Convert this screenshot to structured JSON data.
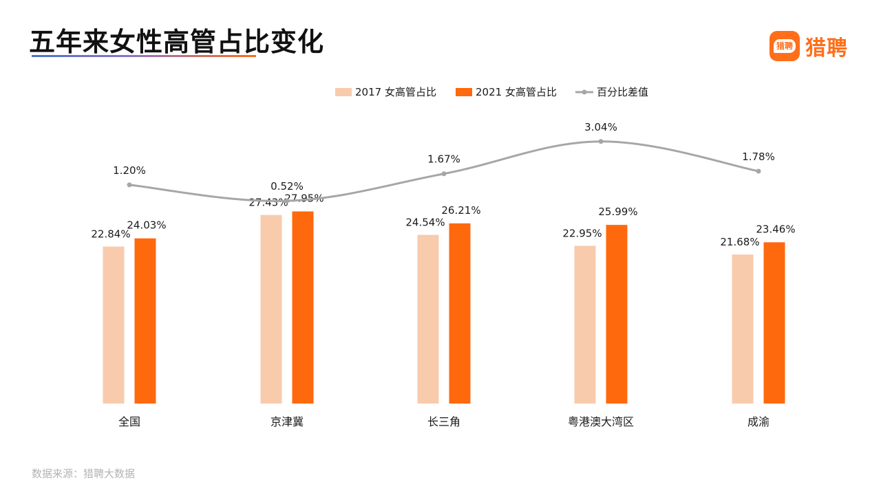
{
  "header": {
    "title": "五年来女性高管占比变化",
    "brand_bubble": "猎聘",
    "brand_name": "猎聘"
  },
  "footer": {
    "source": "数据来源：猎聘大数据"
  },
  "colors": {
    "bar2017": "#f8cbad",
    "bar2021": "#ff690e",
    "diff_line": "#a6a6a6",
    "accent": "#ff6e1a"
  },
  "chart_data": {
    "type": "bar",
    "categories": [
      "全国",
      "京津冀",
      "长三角",
      "粤港澳大湾区",
      "成渝"
    ],
    "series": [
      {
        "name": "2017 女高管占比",
        "type": "bar",
        "values": [
          22.84,
          27.43,
          24.54,
          22.95,
          21.68
        ],
        "labels": [
          "22.84%",
          "27.43%",
          "24.54%",
          "22.95%",
          "21.68%"
        ]
      },
      {
        "name": "2021 女高管占比",
        "type": "bar",
        "values": [
          24.03,
          27.95,
          26.21,
          25.99,
          23.46
        ],
        "labels": [
          "24.03%",
          "27.95%",
          "26.21%",
          "25.99%",
          "23.46%"
        ]
      },
      {
        "name": "百分比差值",
        "type": "line",
        "smooth": true,
        "values": [
          1.2,
          0.52,
          1.67,
          3.04,
          1.78
        ],
        "labels": [
          "1.20%",
          "0.52%",
          "1.67%",
          "3.04%",
          "1.78%"
        ]
      }
    ],
    "legend_position": "top-center",
    "grid": false,
    "bar_ylim": [
      0,
      30
    ],
    "line_ylim": [
      0,
      3.5
    ]
  }
}
